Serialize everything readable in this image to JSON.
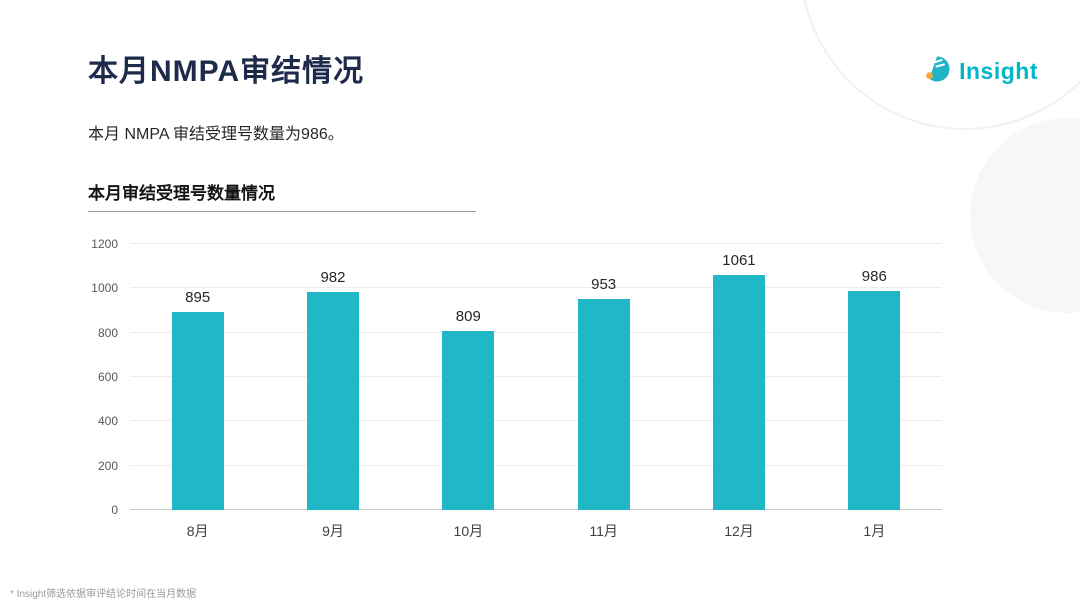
{
  "page": {
    "title": "本月NMPA审结情况",
    "subtitle": "本月 NMPA 审结受理号数量为986。",
    "footnote": "* Insight筛选依据审评结论时间在当月数据"
  },
  "logo": {
    "text": "Insight"
  },
  "colors": {
    "title": "#1e2a4a",
    "accent": "#00b7c9",
    "bar": "#20b7c7",
    "grid": "#ececec",
    "axis_text": "#595959"
  },
  "chart_data": {
    "type": "bar",
    "title": "本月审结受理号数量情况",
    "categories": [
      "8月",
      "9月",
      "10月",
      "11月",
      "12月",
      "1月"
    ],
    "values": [
      895,
      982,
      809,
      953,
      1061,
      986
    ],
    "xlabel": "",
    "ylabel": "",
    "ylim": [
      0,
      1200
    ],
    "yticks": [
      0,
      200,
      400,
      600,
      800,
      1000,
      1200
    ],
    "bar_color": "#20b7c7",
    "grid": true,
    "legend": false,
    "value_labels": true
  }
}
